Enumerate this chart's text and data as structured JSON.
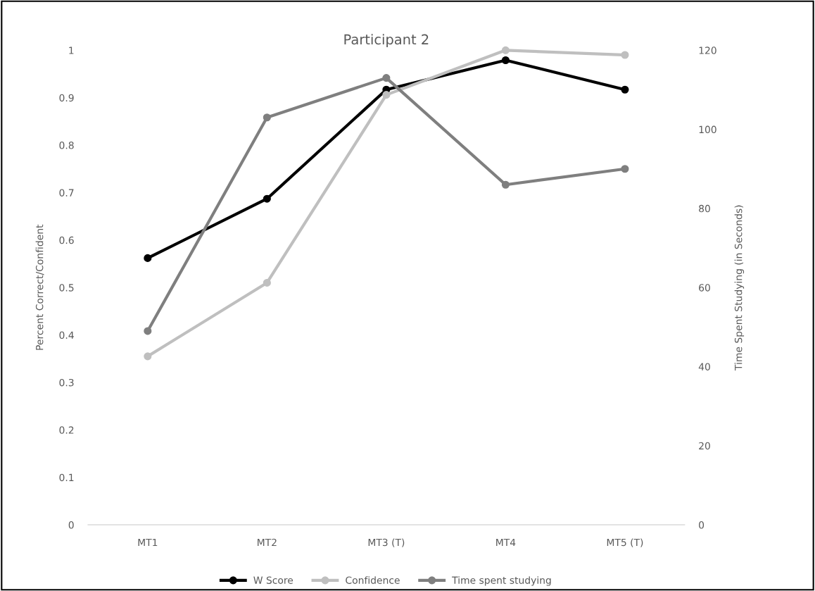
{
  "chart_data": {
    "type": "line",
    "title": "Participant 2",
    "ylabel": "Percent Correct/Confident",
    "y2label": "Time Spent Studying (in Seconds)",
    "categories": [
      "MT1",
      "MT2",
      "MT3 (T)",
      "MT4",
      "MT5 (T)"
    ],
    "series": [
      {
        "name": "W Score",
        "color": "#000000",
        "values": [
          0.562,
          0.687,
          0.917,
          0.979,
          0.917
        ]
      },
      {
        "name": "Confidence",
        "color": "#bfbfbf",
        "values": [
          0.355,
          0.51,
          0.906,
          1.0,
          0.99
        ]
      },
      {
        "name": "Time spent studying",
        "color": "#7f7f7f",
        "axis": "y2",
        "values": [
          49,
          103,
          113,
          86,
          90
        ]
      }
    ],
    "ylim": [
      0,
      1
    ],
    "yticks": [
      0,
      0.1,
      0.2,
      0.3,
      0.4,
      0.5,
      0.6,
      0.7,
      0.8,
      0.9,
      1
    ],
    "y2lim": [
      0,
      120
    ],
    "y2ticks": [
      0,
      20,
      40,
      60,
      80,
      100,
      120
    ],
    "grid": false,
    "legend": "bottom",
    "marker": "circle",
    "line_style": "solid"
  }
}
